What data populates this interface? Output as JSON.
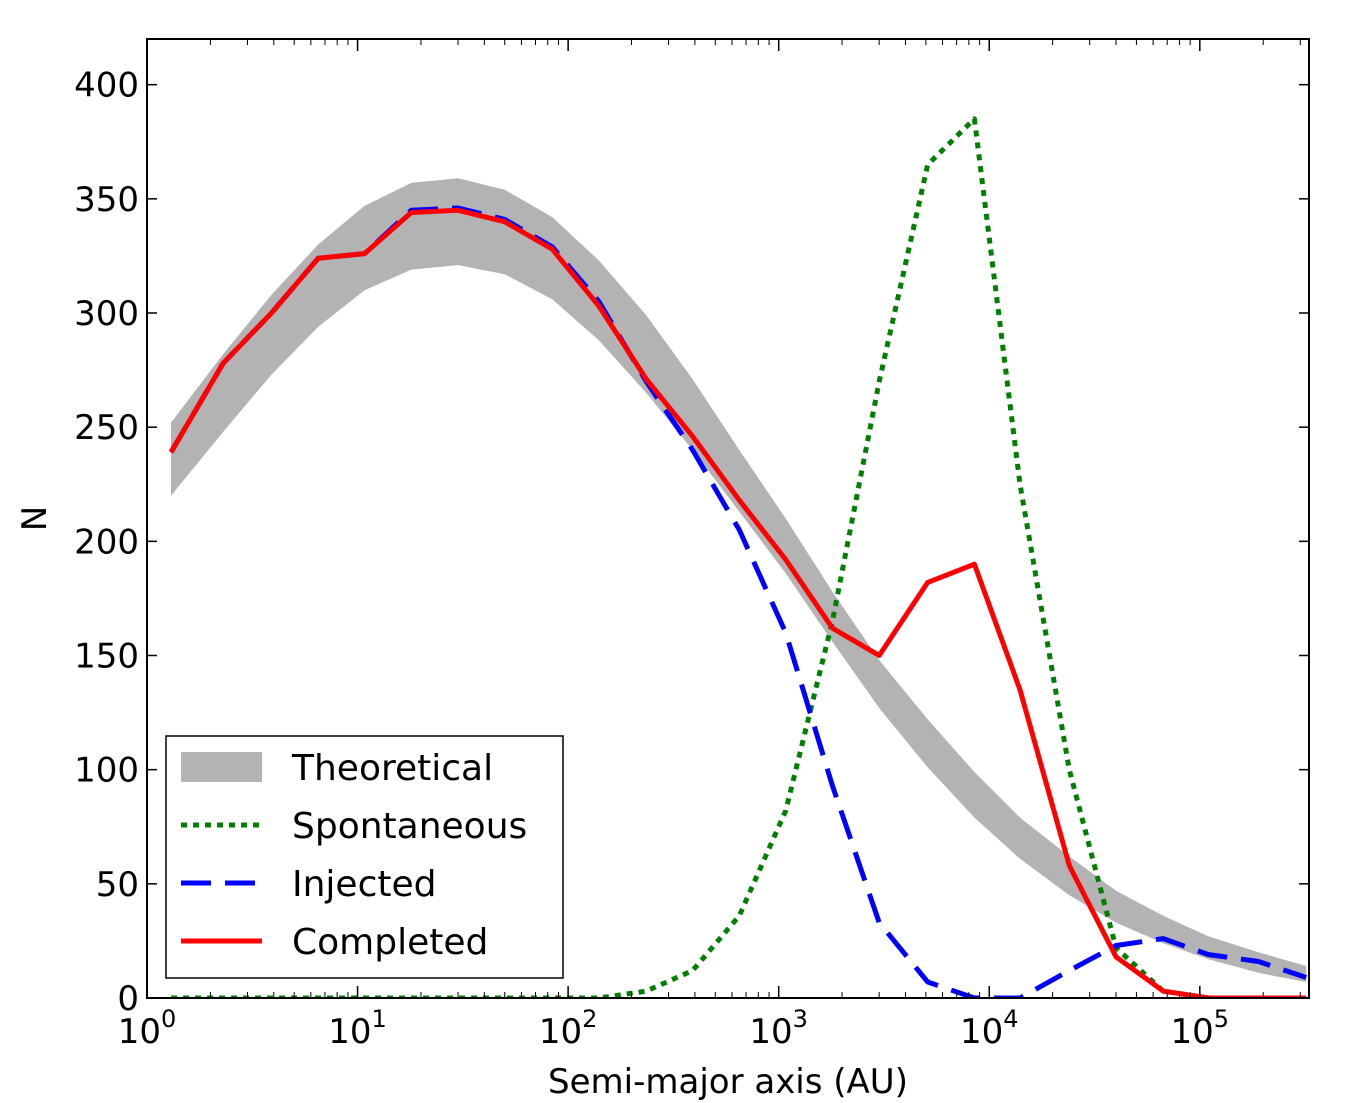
{
  "chart_data": {
    "type": "line",
    "title": "",
    "xlabel": "Semi-major axis (AU)",
    "ylabel": "N",
    "xscale": "log",
    "xlim": [
      1,
      330000
    ],
    "ylim": [
      0,
      420
    ],
    "grid": false,
    "legend_position": "lower-left",
    "x_ticks": [
      {
        "value": 1,
        "base": "10",
        "exp": "0"
      },
      {
        "value": 10,
        "base": "10",
        "exp": "1"
      },
      {
        "value": 100,
        "base": "10",
        "exp": "2"
      },
      {
        "value": 1000,
        "base": "10",
        "exp": "3"
      },
      {
        "value": 10000,
        "base": "10",
        "exp": "4"
      },
      {
        "value": 100000,
        "base": "10",
        "exp": "5"
      }
    ],
    "y_ticks": [
      0,
      50,
      100,
      150,
      200,
      250,
      300,
      350,
      400
    ],
    "x": [
      1.3,
      2.3,
      3.9,
      6.5,
      10.8,
      18,
      30,
      50,
      84,
      140,
      235,
      390,
      650,
      1080,
      1800,
      3000,
      5100,
      8500,
      14000,
      24000,
      40000,
      67000,
      110000,
      190000,
      320000
    ],
    "band": {
      "name": "Theoretical",
      "color": "#b3b3b3",
      "lower": [
        220,
        248,
        273,
        294,
        310,
        319,
        321,
        317,
        306,
        288,
        265,
        240,
        213,
        186,
        156,
        127,
        101,
        79,
        61,
        45,
        33,
        24,
        17,
        11,
        7
      ],
      "upper": [
        252,
        282,
        308,
        330,
        347,
        357,
        359,
        354,
        342,
        323,
        299,
        271,
        240,
        210,
        178,
        148,
        122,
        99,
        79,
        62,
        47,
        36,
        27,
        20,
        14
      ]
    },
    "series": [
      {
        "name": "Spontaneous",
        "color": "#007f00",
        "style": "dotted",
        "values": [
          0,
          0,
          0,
          0,
          0,
          0,
          0,
          0,
          0,
          0,
          3,
          12,
          36,
          82,
          165,
          270,
          365,
          385,
          225,
          100,
          22,
          3,
          0,
          0,
          0
        ]
      },
      {
        "name": "Injected",
        "color": "#0000ff",
        "style": "dashed",
        "values": [
          239,
          278,
          300,
          324,
          326,
          345,
          346,
          341,
          329,
          305,
          270,
          240,
          205,
          160,
          93,
          33,
          7,
          0,
          0,
          12,
          23,
          26,
          19,
          16,
          9
        ]
      },
      {
        "name": "Completed",
        "color": "#ff0000",
        "style": "solid",
        "values": [
          239,
          278,
          300,
          324,
          326,
          344,
          345,
          340,
          328,
          303,
          271,
          246,
          218,
          192,
          162,
          150,
          182,
          190,
          135,
          58,
          18,
          3,
          0,
          0,
          0
        ]
      }
    ],
    "legend": [
      {
        "label": "Theoretical",
        "kind": "band",
        "color": "#b3b3b3"
      },
      {
        "label": "Spontaneous",
        "kind": "dotted",
        "color": "#007f00"
      },
      {
        "label": "Injected",
        "kind": "dashed",
        "color": "#0000ff"
      },
      {
        "label": "Completed",
        "kind": "solid",
        "color": "#ff0000"
      }
    ]
  }
}
